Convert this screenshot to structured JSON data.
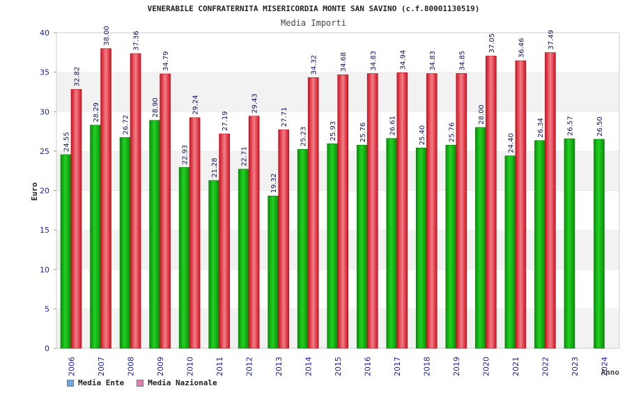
{
  "page": {
    "title": "VENERABILE CONFRATERNITA MISERICORDIA MONTE SAN SAVINO (c.f.80001130519)",
    "subtitle": "Media Importi"
  },
  "colors": {
    "ente": "#11b511",
    "nazionale": "#e8323c",
    "legend_ente": "#6fa8e8",
    "legend_nazionale": "#e07ab0",
    "axis_text": "#1a1aa6",
    "band": "#f2f2f2"
  },
  "chart_data": {
    "type": "bar",
    "title": "VENERABILE CONFRATERNITA MISERICORDIA MONTE SAN SAVINO (c.f.80001130519)",
    "subtitle": "Media Importi",
    "xlabel": "Anno",
    "ylabel": "Euro",
    "ylim": [
      0,
      40
    ],
    "yticks": [
      0,
      5,
      10,
      15,
      20,
      25,
      30,
      35,
      40
    ],
    "categories": [
      "2006",
      "2007",
      "2008",
      "2009",
      "2010",
      "2011",
      "2012",
      "2013",
      "2014",
      "2015",
      "2016",
      "2017",
      "2018",
      "2019",
      "2020",
      "2021",
      "2022",
      "2023",
      "2024"
    ],
    "series": [
      {
        "name": "Media Ente",
        "values": [
          24.55,
          28.29,
          26.72,
          28.9,
          22.93,
          21.28,
          22.71,
          19.32,
          25.23,
          25.93,
          25.76,
          26.61,
          25.4,
          25.76,
          28.0,
          24.4,
          26.34,
          26.57,
          26.5
        ],
        "labels": [
          "24.55",
          "28.29",
          "26.72",
          "28.90",
          "22.93",
          "21.28",
          "22.71",
          "19.32",
          "25.23",
          "25.93",
          "25.76",
          "26.61",
          "25.40",
          "25.76",
          "28.00",
          "24.40",
          "26.34",
          "26.57",
          "26.50"
        ]
      },
      {
        "name": "Media Nazionale",
        "values": [
          32.82,
          38.0,
          37.36,
          34.79,
          29.24,
          27.19,
          29.43,
          27.71,
          34.32,
          34.68,
          34.83,
          34.94,
          34.83,
          34.85,
          37.05,
          36.46,
          37.49,
          null,
          null
        ],
        "labels": [
          "32.82",
          "38.00",
          "37.36",
          "34.79",
          "29.24",
          "27.19",
          "29.43",
          "27.71",
          "34.32",
          "34.68",
          "34.83",
          "34.94",
          "34.83",
          "34.85",
          "37.05",
          "36.46",
          "37.49",
          "",
          ""
        ]
      }
    ],
    "grid": "alternating horizontal bands",
    "legend_position": "bottom-left"
  },
  "legend": {
    "ente_label": "Media Ente",
    "nazionale_label": "Media Nazionale"
  }
}
